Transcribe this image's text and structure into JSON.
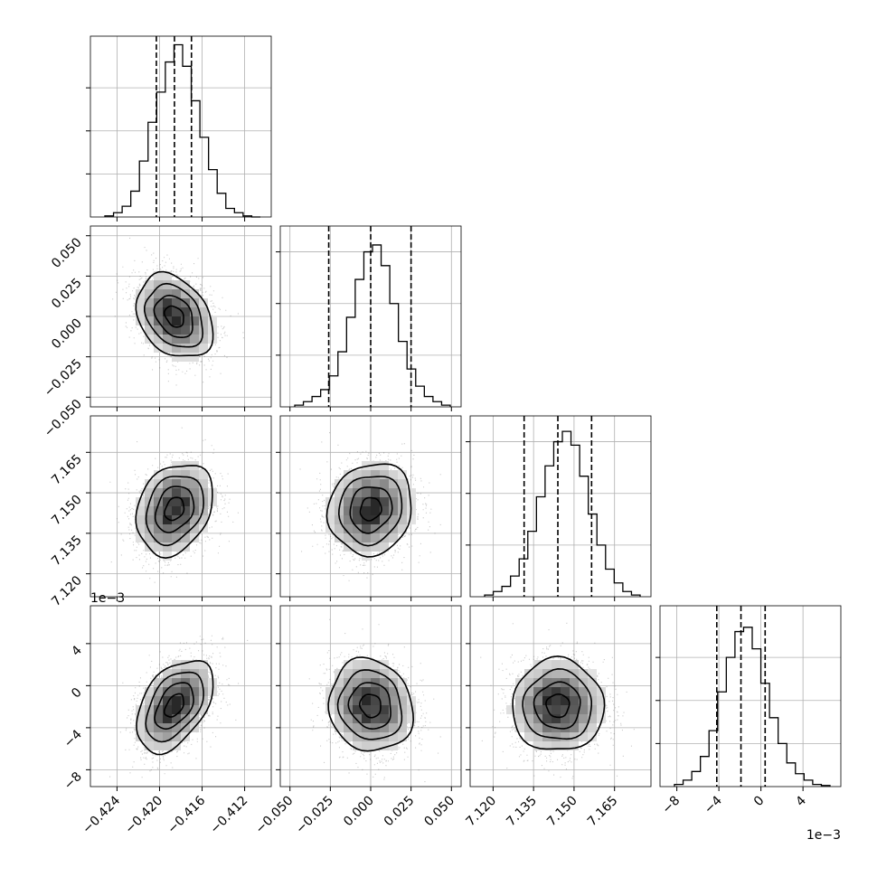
{
  "chart_data": {
    "type": "corner",
    "parameters": [
      {
        "range": [
          -0.4265,
          -0.4095
        ],
        "ticks": [
          -0.424,
          -0.42,
          -0.416,
          -0.412
        ],
        "tick_labels": [
          "−0.424",
          "−0.420",
          "−0.416",
          "−0.412"
        ],
        "offset_text": "",
        "quantiles": [
          -0.4203,
          -0.4186,
          -0.417
        ],
        "hist_counts": [
          0.5,
          2,
          5,
          12,
          26,
          44,
          58,
          72,
          80,
          70,
          54,
          37,
          22,
          11,
          4,
          2,
          0.5,
          0
        ],
        "hist_max": 80,
        "hist_ticks": [
          20,
          40,
          60
        ]
      },
      {
        "range": [
          -0.056,
          0.056
        ],
        "ticks": [
          -0.05,
          -0.025,
          0.0,
          0.025,
          0.05
        ],
        "tick_labels": [
          "−0.050",
          "−0.025",
          "0.000",
          "0.025",
          "0.050"
        ],
        "offset_text": "",
        "quantiles": [
          -0.026,
          0.0,
          0.025
        ],
        "hist_counts": [
          1,
          3,
          6,
          10,
          18,
          32,
          52,
          74,
          90,
          94,
          82,
          60,
          38,
          22,
          12,
          6,
          3,
          1
        ],
        "hist_max": 100,
        "hist_ticks": [
          30,
          60,
          90
        ]
      },
      {
        "range": [
          7.1115,
          7.1785
        ],
        "ticks": [
          7.12,
          7.135,
          7.15,
          7.165
        ],
        "tick_labels": [
          "7.120",
          "7.135",
          "7.150",
          "7.165"
        ],
        "offset_text": "",
        "quantiles": [
          7.1315,
          7.144,
          7.1565
        ],
        "hist_counts": [
          1,
          3,
          6,
          12,
          22,
          38,
          58,
          76,
          90,
          96,
          88,
          70,
          48,
          30,
          16,
          8,
          3,
          1
        ],
        "hist_max": 100,
        "hist_ticks": [
          30,
          60,
          90
        ]
      },
      {
        "range": [
          -0.0096,
          0.0076
        ],
        "ticks": [
          -0.008,
          -0.004,
          0.0,
          0.004
        ],
        "tick_labels": [
          "−8",
          "−4",
          "0",
          "4"
        ],
        "offset_text": "1e−3",
        "quantiles": [
          -0.0042,
          -0.0019,
          0.0004
        ],
        "hist_counts": [
          1,
          3,
          7,
          14,
          26,
          44,
          60,
          72,
          74,
          64,
          48,
          32,
          20,
          11,
          6,
          3,
          1,
          0.5
        ],
        "hist_max": 80,
        "hist_ticks": [
          20,
          40,
          60
        ]
      }
    ],
    "pairs": [
      {
        "x": 0,
        "y": 1,
        "mean": [
          -0.4186,
          0.0
        ],
        "sd": [
          0.0018,
          0.013
        ],
        "rho": -0.3
      },
      {
        "x": 0,
        "y": 2,
        "mean": [
          -0.4186,
          7.144
        ],
        "sd": [
          0.0018,
          0.0085
        ],
        "rho": 0.25
      },
      {
        "x": 1,
        "y": 2,
        "mean": [
          0.0,
          7.144
        ],
        "sd": [
          0.013,
          0.0085
        ],
        "rho": 0.1
      },
      {
        "x": 0,
        "y": 3,
        "mean": [
          -0.4186,
          -0.0019
        ],
        "sd": [
          0.0018,
          0.0022
        ],
        "rho": 0.45
      },
      {
        "x": 1,
        "y": 3,
        "mean": [
          0.0,
          -0.0019
        ],
        "sd": [
          0.013,
          0.0022
        ],
        "rho": -0.1
      },
      {
        "x": 2,
        "y": 3,
        "mean": [
          7.144,
          -0.0019
        ],
        "sd": [
          0.0085,
          0.0022
        ],
        "rho": 0.0
      }
    ],
    "grid": true,
    "colors": {
      "line": "#000000",
      "grid": "#b0b0b0",
      "points": "#444444"
    }
  }
}
